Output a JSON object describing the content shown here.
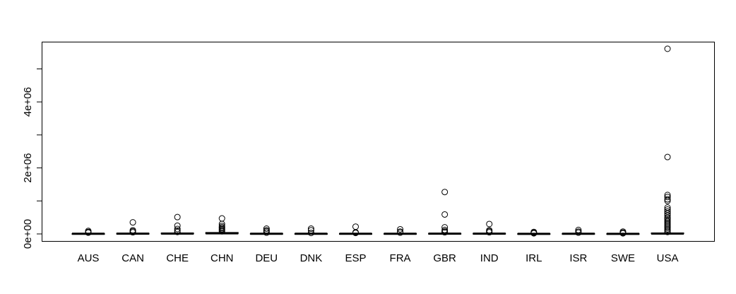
{
  "chart_data": {
    "type": "boxplot",
    "title": "",
    "xlabel": "",
    "ylabel": "",
    "ylim": [
      -200000,
      5850000
    ],
    "y_ticks": [
      {
        "value": 0,
        "label": "0e+00"
      },
      {
        "value": 1000000,
        "label": ""
      },
      {
        "value": 2000000,
        "label": "2e+06"
      },
      {
        "value": 3000000,
        "label": ""
      },
      {
        "value": 4000000,
        "label": "4e+06"
      },
      {
        "value": 5000000,
        "label": ""
      }
    ],
    "categories": [
      "AUS",
      "CAN",
      "CHE",
      "CHN",
      "DEU",
      "DNK",
      "ESP",
      "FRA",
      "GBR",
      "IND",
      "IRL",
      "ISR",
      "SWE",
      "USA"
    ],
    "boxes": [
      {
        "category": "AUS",
        "q1": 2000,
        "median": 5000,
        "q3": 10000,
        "outliers": [
          40000,
          60000,
          90000
        ]
      },
      {
        "category": "CAN",
        "q1": 3000,
        "median": 8000,
        "q3": 18000,
        "outliers": [
          50000,
          80000,
          110000,
          350000
        ]
      },
      {
        "category": "CHE",
        "q1": 4000,
        "median": 10000,
        "q3": 25000,
        "outliers": [
          60000,
          100000,
          150000,
          250000,
          510000
        ]
      },
      {
        "category": "CHN",
        "q1": 8000,
        "median": 20000,
        "q3": 45000,
        "outliers": [
          80000,
          110000,
          140000,
          170000,
          200000,
          240000,
          300000,
          470000
        ]
      },
      {
        "category": "DEU",
        "q1": 2000,
        "median": 6000,
        "q3": 14000,
        "outliers": [
          40000,
          80000,
          110000,
          160000
        ]
      },
      {
        "category": "DNK",
        "q1": 2000,
        "median": 5000,
        "q3": 11000,
        "outliers": [
          30000,
          110000,
          160000
        ]
      },
      {
        "category": "ESP",
        "q1": 2000,
        "median": 5000,
        "q3": 11000,
        "outliers": [
          30000,
          50000,
          220000
        ]
      },
      {
        "category": "FRA",
        "q1": 2000,
        "median": 6000,
        "q3": 13000,
        "outliers": [
          40000,
          70000,
          140000
        ]
      },
      {
        "category": "GBR",
        "q1": 3000,
        "median": 7000,
        "q3": 16000,
        "outliers": [
          50000,
          80000,
          120000,
          200000,
          590000,
          1270000
        ]
      },
      {
        "category": "IND",
        "q1": 3000,
        "median": 8000,
        "q3": 18000,
        "outliers": [
          50000,
          80000,
          110000,
          300000
        ]
      },
      {
        "category": "IRL",
        "q1": 1000,
        "median": 4000,
        "q3": 9000,
        "outliers": [
          20000,
          40000,
          60000
        ]
      },
      {
        "category": "ISR",
        "q1": 2000,
        "median": 6000,
        "q3": 14000,
        "outliers": [
          40000,
          70000,
          120000
        ]
      },
      {
        "category": "SWE",
        "q1": 1000,
        "median": 4000,
        "q3": 9000,
        "outliers": [
          20000,
          40000,
          70000
        ]
      },
      {
        "category": "USA",
        "q1": 5000,
        "median": 12000,
        "q3": 30000,
        "outliers": [
          60000,
          100000,
          140000,
          180000,
          220000,
          260000,
          300000,
          340000,
          380000,
          420000,
          460000,
          500000,
          560000,
          620000,
          680000,
          740000,
          800000,
          1000000,
          1050000,
          1120000,
          1180000,
          2330000,
          5610000
        ]
      }
    ],
    "grid": false,
    "legend": "none"
  }
}
